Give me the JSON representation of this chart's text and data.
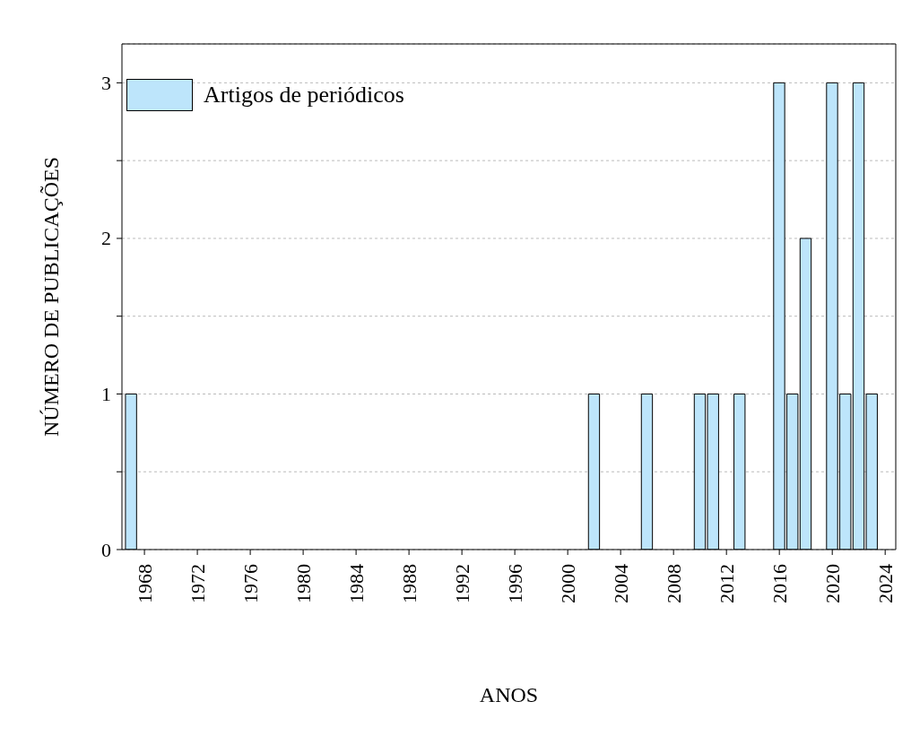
{
  "chart_data": {
    "type": "bar",
    "xlabel": "ANOS",
    "ylabel": "NÚMERO DE PUBLICAÇÕES",
    "x": [
      1967,
      2002,
      2006,
      2010,
      2011,
      2013,
      2016,
      2017,
      2018,
      2020,
      2021,
      2022,
      2023
    ],
    "series": [
      {
        "name": "Artigos de periódicos",
        "color": "#bde5fb",
        "values": [
          1,
          1,
          1,
          1,
          1,
          1,
          3,
          1,
          2,
          3,
          1,
          3,
          1
        ]
      }
    ],
    "xlim": [
      1966.3,
      2024.8
    ],
    "xticks": [
      1968,
      1972,
      1976,
      1980,
      1984,
      1988,
      1992,
      1996,
      2000,
      2004,
      2008,
      2012,
      2016,
      2020,
      2024
    ],
    "ylim": [
      0,
      3.25
    ],
    "yticks": [
      0,
      {
        "value": 0.5,
        "label": null
      },
      1,
      {
        "value": 1.5,
        "label": null
      },
      2,
      {
        "value": 2.5,
        "label": null
      },
      3
    ],
    "grid": "y",
    "legend": "top left"
  }
}
